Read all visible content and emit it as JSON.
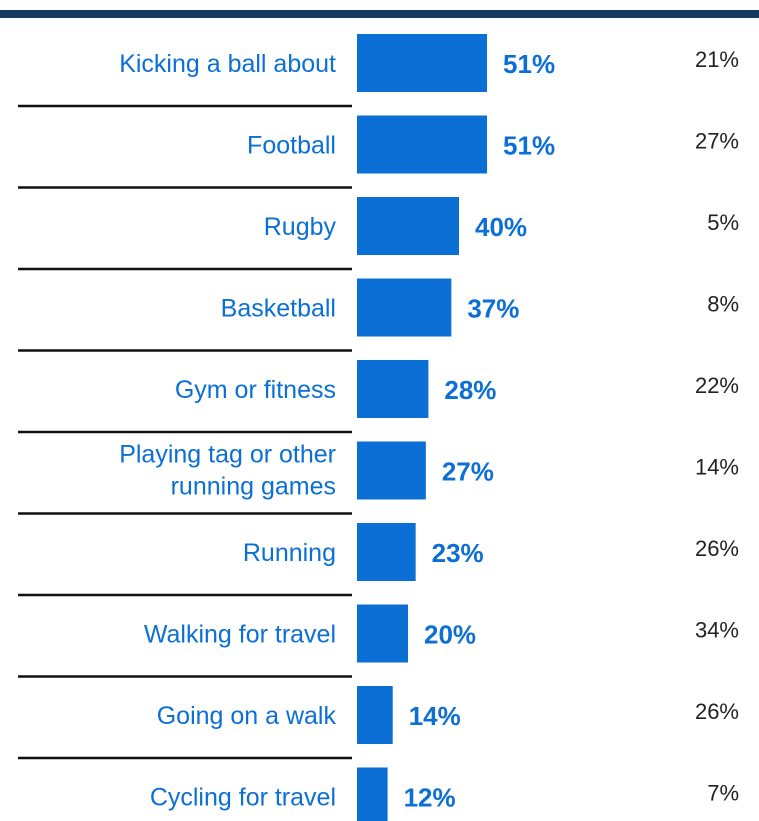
{
  "colors": {
    "bar": "#0b6fd6",
    "label": "#0b6fd6",
    "value_label": "#0b6fd6",
    "secondary_value": "#222222",
    "top_rule": "#163a5c",
    "divider": "#111111"
  },
  "chart_data": {
    "type": "bar",
    "orientation": "horizontal",
    "categories": [
      [
        "Kicking a ball about"
      ],
      [
        "Football"
      ],
      [
        "Rugby"
      ],
      [
        "Basketball"
      ],
      [
        "Gym or fitness"
      ],
      [
        "Playing tag or other",
        "running games"
      ],
      [
        "Running"
      ],
      [
        "Walking for travel"
      ],
      [
        "Going on a walk"
      ],
      [
        "Cycling for travel"
      ]
    ],
    "series": [
      {
        "values": [
          51,
          51,
          40,
          37,
          28,
          27,
          23,
          20,
          14,
          12
        ],
        "labels": [
          "51%",
          "51%",
          "40%",
          "37%",
          "28%",
          "27%",
          "23%",
          "20%",
          "14%",
          "12%"
        ]
      },
      {
        "values": [
          21,
          27,
          5,
          8,
          22,
          14,
          26,
          34,
          26,
          7
        ],
        "labels": [
          "21%",
          "27%",
          "5%",
          "8%",
          "22%",
          "14%",
          "26%",
          "34%",
          "26%",
          "7%"
        ]
      }
    ],
    "xlim": [
      0,
      100
    ],
    "grid": false
  }
}
